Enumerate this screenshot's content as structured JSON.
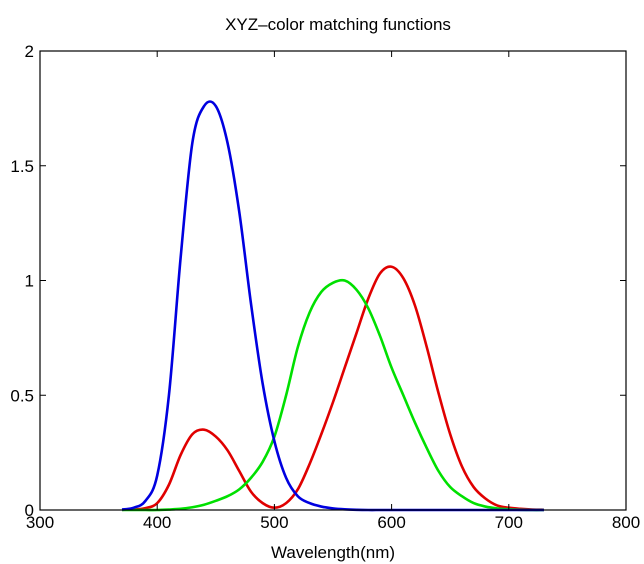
{
  "chart_data": {
    "type": "line",
    "title": "XYZ–color matching functions",
    "xlabel": "Wavelength(nm)",
    "ylabel": "",
    "xlim": [
      300,
      800
    ],
    "ylim": [
      0,
      2
    ],
    "xticks": [
      300,
      400,
      500,
      600,
      700,
      800
    ],
    "yticks": [
      0,
      0.5,
      1,
      1.5,
      2
    ],
    "xtick_labels": [
      "300",
      "400",
      "500",
      "600",
      "700",
      "800"
    ],
    "ytick_labels": [
      "0",
      "0.5",
      "1",
      "1.5",
      "2"
    ],
    "grid": false,
    "x": [
      370,
      380,
      390,
      400,
      410,
      420,
      430,
      440,
      450,
      460,
      470,
      480,
      490,
      500,
      510,
      520,
      530,
      540,
      550,
      560,
      570,
      580,
      590,
      600,
      610,
      620,
      630,
      640,
      650,
      660,
      670,
      680,
      690,
      700,
      710,
      720,
      730
    ],
    "series": [
      {
        "color": "#e00000",
        "values": [
          0.001,
          0.002,
          0.008,
          0.03,
          0.11,
          0.24,
          0.33,
          0.35,
          0.32,
          0.26,
          0.17,
          0.08,
          0.03,
          0.01,
          0.03,
          0.09,
          0.2,
          0.33,
          0.47,
          0.62,
          0.77,
          0.92,
          1.03,
          1.06,
          1.01,
          0.89,
          0.71,
          0.51,
          0.33,
          0.19,
          0.1,
          0.05,
          0.02,
          0.01,
          0.005,
          0.002,
          0.001
        ]
      },
      {
        "color": "#00e000",
        "values": [
          0.0,
          0.0,
          0.0,
          0.0,
          0.002,
          0.005,
          0.012,
          0.023,
          0.04,
          0.06,
          0.09,
          0.14,
          0.21,
          0.32,
          0.5,
          0.71,
          0.86,
          0.95,
          0.99,
          1.0,
          0.96,
          0.88,
          0.76,
          0.62,
          0.5,
          0.38,
          0.27,
          0.17,
          0.1,
          0.06,
          0.03,
          0.015,
          0.007,
          0.003,
          0.001,
          0.0,
          0.0
        ]
      },
      {
        "color": "#0000e0",
        "values": [
          0.002,
          0.01,
          0.04,
          0.15,
          0.5,
          1.1,
          1.6,
          1.76,
          1.76,
          1.6,
          1.3,
          0.9,
          0.55,
          0.3,
          0.14,
          0.06,
          0.03,
          0.015,
          0.007,
          0.003,
          0.001,
          0.0,
          0.0,
          0.0,
          0.0,
          0.0,
          0.0,
          0.0,
          0.0,
          0.0,
          0.0,
          0.0,
          0.0,
          0.0,
          0.0,
          0.0,
          0.0
        ]
      }
    ]
  }
}
